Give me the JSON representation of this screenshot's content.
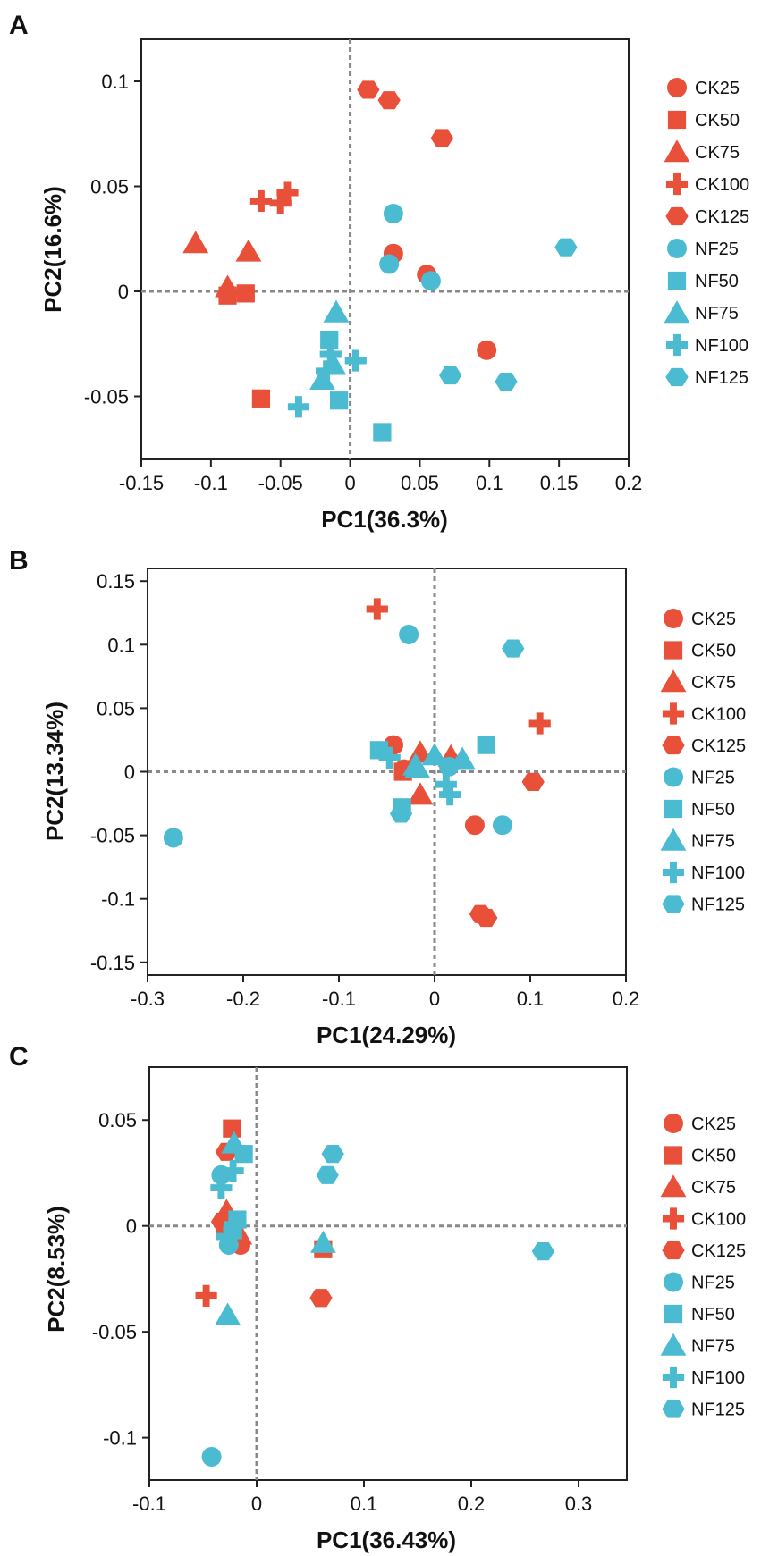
{
  "figure": {
    "colors": {
      "CK": "#e8503a",
      "NF": "#4bbbd1",
      "axis": "#222222",
      "zero_line": "#888888"
    },
    "legend": {
      "entries": [
        {
          "label": "CK25",
          "group": "CK",
          "shape": "circle"
        },
        {
          "label": "CK50",
          "group": "CK",
          "shape": "square"
        },
        {
          "label": "CK75",
          "group": "CK",
          "shape": "triangle"
        },
        {
          "label": "CK100",
          "group": "CK",
          "shape": "cross"
        },
        {
          "label": "CK125",
          "group": "CK",
          "shape": "hexagon"
        },
        {
          "label": "NF25",
          "group": "NF",
          "shape": "circle"
        },
        {
          "label": "NF50",
          "group": "NF",
          "shape": "square"
        },
        {
          "label": "NF75",
          "group": "NF",
          "shape": "triangle"
        },
        {
          "label": "NF100",
          "group": "NF",
          "shape": "cross"
        },
        {
          "label": "NF125",
          "group": "NF",
          "shape": "hexagon"
        }
      ]
    }
  },
  "chart_data": [
    {
      "type": "scatter",
      "panel": "A",
      "xlabel": "PC1(36.3%)",
      "ylabel": "PC2(16.6%)",
      "xlim": [
        -0.15,
        0.2
      ],
      "ylim": [
        -0.08,
        0.12
      ],
      "xticks": [
        -0.15,
        -0.1,
        -0.05,
        0,
        0.05,
        0.1,
        0.15,
        0.2
      ],
      "xtick_labels": [
        "-0.15",
        "-0.1",
        "-0.05",
        "0",
        "0.05",
        "0.1",
        "0.15",
        "0.2"
      ],
      "yticks": [
        -0.05,
        0,
        0.05,
        0.1
      ],
      "ytick_labels": [
        "-0.05",
        "0",
        "0.05",
        "0.1"
      ],
      "series": [
        {
          "name": "CK25",
          "x": [
            0.031,
            0.055,
            0.098
          ],
          "y": [
            0.018,
            0.008,
            -0.028
          ]
        },
        {
          "name": "CK50",
          "x": [
            -0.088,
            -0.075,
            -0.064
          ],
          "y": [
            -0.002,
            -0.001,
            -0.051
          ]
        },
        {
          "name": "CK75",
          "x": [
            -0.111,
            -0.073,
            -0.088
          ],
          "y": [
            0.023,
            0.019,
            0.002
          ]
        },
        {
          "name": "CK100",
          "x": [
            -0.064,
            -0.05,
            -0.045
          ],
          "y": [
            0.043,
            0.042,
            0.047
          ]
        },
        {
          "name": "CK125",
          "x": [
            0.013,
            0.028,
            0.066
          ],
          "y": [
            0.096,
            0.091,
            0.073
          ]
        },
        {
          "name": "NF25",
          "x": [
            0.031,
            0.028,
            0.058
          ],
          "y": [
            0.037,
            0.013,
            0.005
          ]
        },
        {
          "name": "NF50",
          "x": [
            -0.015,
            -0.008,
            0.023
          ],
          "y": [
            -0.023,
            -0.052,
            -0.067
          ]
        },
        {
          "name": "NF75",
          "x": [
            -0.01,
            -0.012,
            -0.02
          ],
          "y": [
            -0.01,
            -0.035,
            -0.042
          ]
        },
        {
          "name": "NF100",
          "x": [
            -0.037,
            -0.014,
            -0.017,
            0.004
          ],
          "y": [
            -0.055,
            -0.03,
            -0.038,
            -0.033
          ]
        },
        {
          "name": "NF125",
          "x": [
            0.072,
            0.112,
            0.155
          ],
          "y": [
            -0.04,
            -0.043,
            0.021
          ]
        }
      ]
    },
    {
      "type": "scatter",
      "panel": "B",
      "xlabel": "PC1(24.29%)",
      "ylabel": "PC2(13.34%)",
      "xlim": [
        -0.3,
        0.2
      ],
      "ylim": [
        -0.16,
        0.16
      ],
      "xticks": [
        -0.3,
        -0.2,
        -0.1,
        0,
        0.1,
        0.2
      ],
      "xtick_labels": [
        "-0.3",
        "-0.2",
        "-0.1",
        "0",
        "0.1",
        "0.2"
      ],
      "yticks": [
        -0.15,
        -0.1,
        -0.05,
        0,
        0.05,
        0.1,
        0.15
      ],
      "ytick_labels": [
        "-0.15",
        "-0.1",
        "-0.05",
        "0",
        "0.05",
        "0.1",
        "0.15"
      ],
      "series": [
        {
          "name": "CK25",
          "x": [
            -0.043,
            0.042,
            -0.032
          ],
          "y": [
            0.021,
            -0.042,
            0.002
          ]
        },
        {
          "name": "CK50",
          "x": [
            -0.033,
            -0.025
          ],
          "y": [
            0.0,
            0.002
          ]
        },
        {
          "name": "CK75",
          "x": [
            -0.015,
            0.017,
            -0.015
          ],
          "y": [
            0.015,
            0.012,
            -0.018
          ]
        },
        {
          "name": "CK100",
          "x": [
            -0.06,
            0.11
          ],
          "y": [
            0.128,
            0.038
          ]
        },
        {
          "name": "CK125",
          "x": [
            0.103,
            0.048,
            0.054
          ],
          "y": [
            -0.008,
            -0.112,
            -0.115
          ]
        },
        {
          "name": "NF25",
          "x": [
            -0.273,
            -0.027,
            0.071,
            0.015
          ],
          "y": [
            -0.052,
            0.108,
            -0.042,
            0.004
          ]
        },
        {
          "name": "NF50",
          "x": [
            -0.058,
            0.054,
            -0.034
          ],
          "y": [
            0.017,
            0.021,
            -0.028
          ]
        },
        {
          "name": "NF75",
          "x": [
            -0.02,
            0.0,
            0.029,
            -0.018
          ],
          "y": [
            0.005,
            0.013,
            0.01,
            0.003
          ]
        },
        {
          "name": "NF100",
          "x": [
            -0.047,
            0.012,
            0.016
          ],
          "y": [
            0.011,
            -0.01,
            -0.018
          ]
        },
        {
          "name": "NF125",
          "x": [
            0.082,
            -0.035
          ],
          "y": [
            0.097,
            -0.033
          ]
        }
      ]
    },
    {
      "type": "scatter",
      "panel": "C",
      "xlabel": "PC1(36.43%)",
      "ylabel": "PC2(8.53%)",
      "xlim": [
        -0.1,
        0.345
      ],
      "ylim": [
        -0.12,
        0.075
      ],
      "xticks": [
        -0.1,
        0,
        0.1,
        0.2,
        0.3
      ],
      "xtick_labels": [
        "-0.1",
        "0",
        "0.1",
        "0.2",
        "0.3"
      ],
      "yticks": [
        -0.1,
        -0.05,
        0,
        0.05
      ],
      "ytick_labels": [
        "-0.1",
        "-0.05",
        "0",
        "0.05"
      ],
      "series": [
        {
          "name": "CK25",
          "x": [
            -0.029,
            -0.015
          ],
          "y": [
            -0.002,
            -0.009
          ]
        },
        {
          "name": "CK50",
          "x": [
            -0.023,
            0.062
          ],
          "y": [
            0.046,
            -0.011
          ]
        },
        {
          "name": "CK75",
          "x": [
            -0.028,
            -0.016
          ],
          "y": [
            0.007,
            -0.004
          ]
        },
        {
          "name": "CK100",
          "x": [
            -0.047
          ],
          "y": [
            -0.033
          ]
        },
        {
          "name": "CK125",
          "x": [
            -0.028,
            -0.032,
            0.06
          ],
          "y": [
            0.035,
            0.002,
            -0.034
          ]
        },
        {
          "name": "NF25",
          "x": [
            -0.033,
            -0.026,
            -0.042
          ],
          "y": [
            0.024,
            -0.009,
            -0.109
          ]
        },
        {
          "name": "NF50",
          "x": [
            -0.012,
            -0.018,
            -0.022
          ],
          "y": [
            0.034,
            0.003,
            -0.002
          ]
        },
        {
          "name": "NF75",
          "x": [
            -0.021,
            0.062,
            -0.027
          ],
          "y": [
            0.039,
            -0.008,
            -0.042
          ]
        },
        {
          "name": "NF100",
          "x": [
            -0.022,
            -0.033,
            -0.028
          ],
          "y": [
            0.026,
            0.018,
            -0.005
          ]
        },
        {
          "name": "NF125",
          "x": [
            0.071,
            0.066,
            0.267
          ],
          "y": [
            0.034,
            0.024,
            -0.012
          ]
        }
      ]
    }
  ]
}
